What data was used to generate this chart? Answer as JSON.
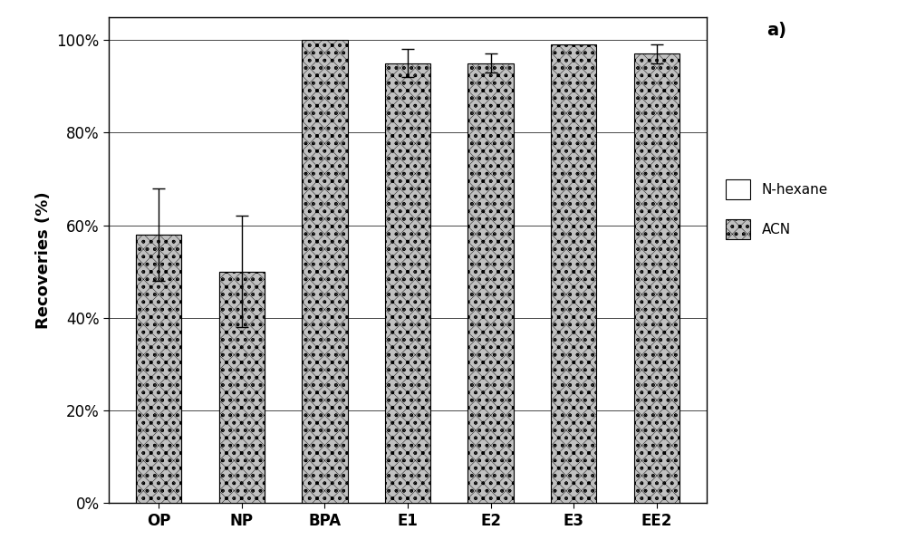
{
  "categories": [
    "OP",
    "NP",
    "BPA",
    "E1",
    "E2",
    "E3",
    "EE2"
  ],
  "nhexane_values": [
    58,
    50,
    0,
    0,
    0,
    0,
    0
  ],
  "nhexane_errors": [
    10,
    12,
    0,
    0,
    0,
    0,
    0
  ],
  "acn_values": [
    58,
    50,
    100,
    95,
    95,
    99,
    97
  ],
  "acn_errors": [
    0,
    0,
    0,
    3,
    2,
    0,
    2
  ],
  "ylabel": "Recoveries (%)",
  "ytick_labels": [
    "0%",
    "20%",
    "40%",
    "60%",
    "80%",
    "100%"
  ],
  "ytick_values": [
    0,
    20,
    40,
    60,
    80,
    100
  ],
  "legend_nhexane": "N-hexane",
  "legend_acn": "ACN",
  "annotation": "a)",
  "background_color": "#ffffff",
  "nhexane_color": "#ffffff",
  "acn_facecolor": "#888888",
  "bar_edge_color": "#000000",
  "bar_width": 0.55,
  "figsize": [
    10.0,
    6.17
  ],
  "dpi": 100,
  "ylim": [
    0,
    105
  ]
}
